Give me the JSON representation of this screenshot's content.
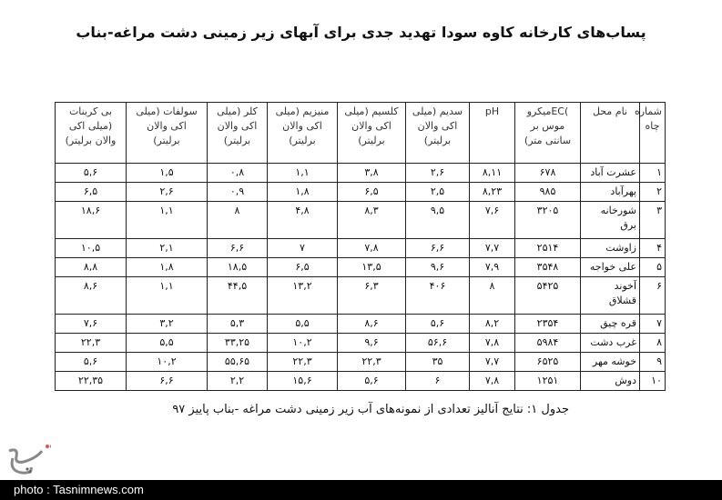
{
  "title": "پساب‌های کارخانه کاوه سودا تهدید جدی برای آبهای زیر زمینی دشت مراغه-بناب",
  "table": {
    "headers": [
      "شماره\nچاه",
      "نام محل",
      ")ECمیکرو\nموس بر\nسانتی متر)",
      "pH",
      "سدیم (میلی\nاکی والان\nبرلیتر)",
      "کلسیم (میلی\nاکی والان\nبرلیتر)",
      "منیزیم (میلی\nاکی والان\nبرلیتر)",
      "کلر (میلی\nاکی والان\nبرلیتر)",
      "سولفات (میلی\nاکی والان\nبرلیتر)",
      "بی کربنات\n(میلی اکی\nوالان برلیتر)"
    ],
    "rows": [
      [
        "۱",
        "عشرت آباد",
        "۶۷۸",
        "۸,۱۱",
        "۲,۶",
        "۳,۸",
        "۱,۱",
        "۰,۸",
        "۱,۵",
        "۵,۶"
      ],
      [
        "۲",
        "پهرآباد",
        "۹۸۵",
        "۸,۲۳",
        "۲,۵",
        "۶,۵",
        "۱,۸",
        "۰,۹",
        "۲,۶",
        "۶,۵"
      ],
      [
        "۳",
        "شورخانه\nبرق",
        "۳۲۰۵",
        "۷,۶",
        "۹,۵",
        "۸,۳",
        "۴,۸",
        "۸",
        "۱,۱",
        "۱۸,۶"
      ],
      [
        "۴",
        "زاوشت",
        "۲۵۱۴",
        "۷,۷",
        "۶,۶",
        "۷,۸",
        "۷",
        "۶,۶",
        "۲,۱",
        "۱۰,۵"
      ],
      [
        "۵",
        "علی خواجه",
        "۳۵۴۸",
        "۷,۹",
        "۹,۶",
        "۱۳,۵",
        "۶,۵",
        "۱۸,۵",
        "۱,۸",
        "۸,۸"
      ],
      [
        "۶",
        "آخوند\nقشلاق",
        "۵۴۲۵",
        "۸",
        "۴۰۶",
        "۶,۳",
        "۱۳,۲",
        "۴۴,۵",
        "۱,۱",
        "۸,۶"
      ],
      [
        "۷",
        "قره چیق",
        "۲۳۵۴",
        "۸,۲",
        "۵,۶",
        "۸,۶",
        "۵,۵",
        "۵,۳",
        "۳,۲",
        "۷,۶"
      ],
      [
        "۸",
        "غرب دشت",
        "۵۹۸۴",
        "۷,۸",
        "۵۶,۶",
        "۹,۶",
        "۱۰,۲",
        "۳۳,۲۵",
        "۵,۵",
        "۲۲,۳"
      ],
      [
        "۹",
        "خوشه مهر",
        "۶۵۲۵",
        "۷,۷",
        "۳۵",
        "۲۲,۳",
        "۲۲,۳",
        "۵۵,۶۵",
        "۱۰,۲",
        "۵,۶"
      ],
      [
        "۱۰",
        "دوش",
        "۱۲۵۱",
        "۷,۸",
        "۶",
        "۵,۶",
        "۱۵,۶",
        "۲,۲",
        "۶,۶",
        "۲۲,۳۵"
      ]
    ]
  },
  "caption": "جدول ۱: نتایج آنالیز تعدادی از نمونه‌های آب زیر زمینی دشت مراغه -بناب پاییز ۹۷",
  "logo": {
    "icon": "tasnim-logo-icon",
    "text": "تسنیم"
  },
  "footer": {
    "credit": "photo : Tasnimnews.com"
  }
}
